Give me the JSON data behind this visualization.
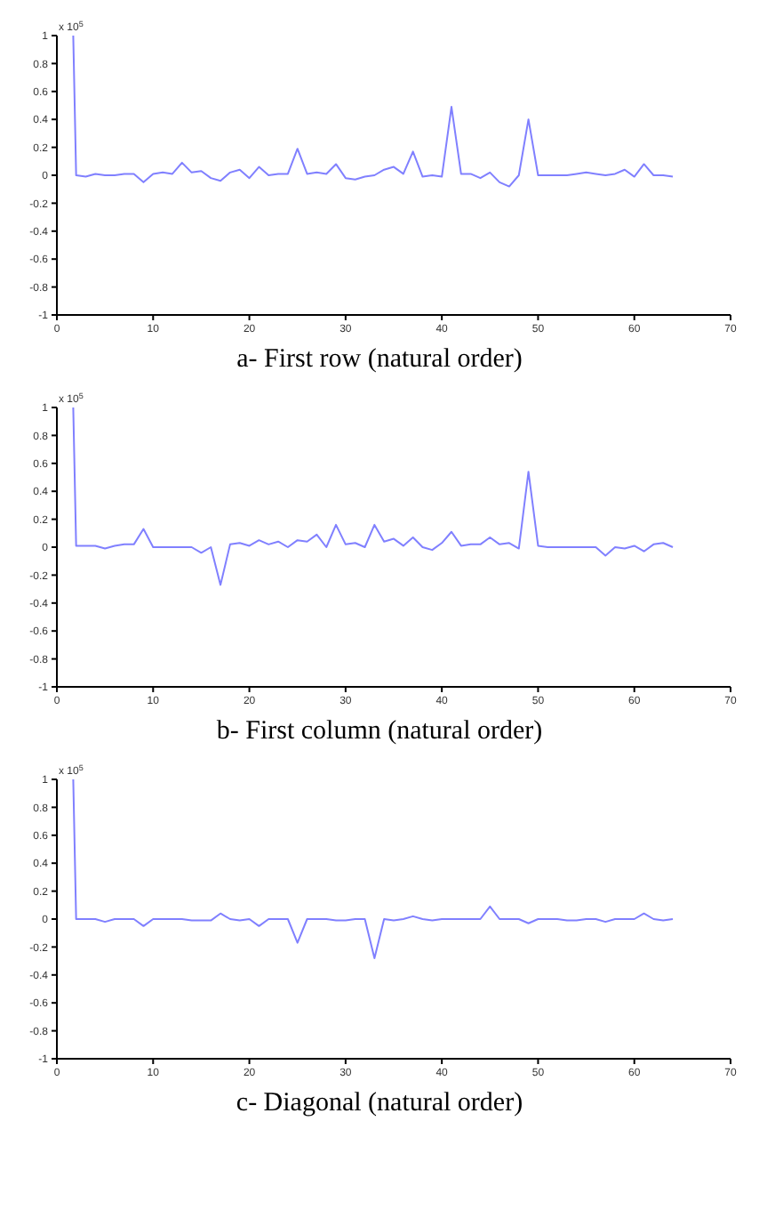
{
  "chart_data": [
    {
      "type": "line",
      "title": "a- First row (natural order)",
      "annotations": [
        "x 10$^{5}$"
      ],
      "xlim": [
        0,
        70
      ],
      "xticks": [
        0,
        10,
        20,
        30,
        40,
        50,
        60,
        70
      ],
      "ylim": [
        -1,
        1
      ],
      "yticks": [
        -1,
        -0.8,
        -0.6,
        -0.4,
        -0.2,
        0,
        0.2,
        0.4,
        0.6,
        0.8,
        1
      ],
      "grid": false,
      "legend": false,
      "series": [
        {
          "color": "#8080ff",
          "x": [
            1.7,
            2,
            3,
            4,
            5,
            6,
            7,
            8,
            9,
            10,
            11,
            12,
            13,
            14,
            15,
            16,
            17,
            18,
            19,
            20,
            21,
            22,
            23,
            24,
            25,
            26,
            27,
            28,
            29,
            30,
            31,
            32,
            33,
            34,
            35,
            36,
            37,
            38,
            39,
            40,
            41,
            42,
            43,
            44,
            45,
            46,
            47,
            48,
            49,
            50,
            51,
            52,
            53,
            54,
            55,
            56,
            57,
            58,
            59,
            60,
            61,
            62,
            63,
            64
          ],
          "values": [
            1,
            0,
            -0.01,
            0.01,
            0,
            0,
            0.01,
            0.01,
            -0.05,
            0.01,
            0.02,
            0.01,
            0.09,
            0.02,
            0.03,
            -0.02,
            -0.04,
            0.02,
            0.04,
            -0.02,
            0.06,
            0,
            0.01,
            0.01,
            0.19,
            0.01,
            0.02,
            0.01,
            0.08,
            -0.02,
            -0.03,
            -0.01,
            0,
            0.04,
            0.06,
            0.01,
            0.17,
            -0.01,
            0,
            -0.01,
            0.49,
            0.01,
            0.01,
            -0.02,
            0.02,
            -0.05,
            -0.08,
            0,
            0.4,
            0,
            0,
            0,
            0,
            0.01,
            0.02,
            0.01,
            0,
            0.01,
            0.04,
            -0.01,
            0.08,
            0,
            0,
            -0.01
          ]
        }
      ]
    },
    {
      "type": "line",
      "title": "b- First column (natural order)",
      "annotations": [
        "x 10$^{5}$"
      ],
      "xlim": [
        0,
        70
      ],
      "xticks": [
        0,
        10,
        20,
        30,
        40,
        50,
        60,
        70
      ],
      "ylim": [
        -1,
        1
      ],
      "yticks": [
        -1,
        -0.8,
        -0.6,
        -0.4,
        -0.2,
        0,
        0.2,
        0.4,
        0.6,
        0.8,
        1
      ],
      "grid": false,
      "legend": false,
      "series": [
        {
          "color": "#8080ff",
          "x": [
            1.7,
            2,
            3,
            4,
            5,
            6,
            7,
            8,
            9,
            10,
            11,
            12,
            13,
            14,
            15,
            16,
            17,
            18,
            19,
            20,
            21,
            22,
            23,
            24,
            25,
            26,
            27,
            28,
            29,
            30,
            31,
            32,
            33,
            34,
            35,
            36,
            37,
            38,
            39,
            40,
            41,
            42,
            43,
            44,
            45,
            46,
            47,
            48,
            49,
            50,
            51,
            52,
            53,
            54,
            55,
            56,
            57,
            58,
            59,
            60,
            61,
            62,
            63,
            64
          ],
          "values": [
            1,
            0.01,
            0.01,
            0.01,
            -0.01,
            0.01,
            0.02,
            0.02,
            0.13,
            0,
            0,
            0,
            0,
            0,
            -0.04,
            0,
            -0.27,
            0.02,
            0.03,
            0.01,
            0.05,
            0.02,
            0.04,
            0,
            0.05,
            0.04,
            0.09,
            0,
            0.16,
            0.02,
            0.03,
            0,
            0.16,
            0.04,
            0.06,
            0.01,
            0.07,
            0,
            -0.02,
            0.03,
            0.11,
            0.01,
            0.02,
            0.02,
            0.07,
            0.02,
            0.03,
            -0.01,
            0.54,
            0.01,
            0,
            0,
            0,
            0,
            0,
            0,
            -0.06,
            0,
            -0.01,
            0.01,
            -0.03,
            0.02,
            0.03,
            0
          ]
        }
      ]
    },
    {
      "type": "line",
      "title": "c- Diagonal (natural order)",
      "annotations": [
        "x 10$^{5}$"
      ],
      "xlim": [
        0,
        70
      ],
      "xticks": [
        0,
        10,
        20,
        30,
        40,
        50,
        60,
        70
      ],
      "ylim": [
        -1,
        1
      ],
      "yticks": [
        -1,
        -0.8,
        -0.6,
        -0.4,
        -0.2,
        0,
        0.2,
        0.4,
        0.6,
        0.8,
        1
      ],
      "grid": false,
      "legend": false,
      "series": [
        {
          "color": "#8080ff",
          "x": [
            1.7,
            2,
            3,
            4,
            5,
            6,
            7,
            8,
            9,
            10,
            11,
            12,
            13,
            14,
            15,
            16,
            17,
            18,
            19,
            20,
            21,
            22,
            23,
            24,
            25,
            26,
            27,
            28,
            29,
            30,
            31,
            32,
            33,
            34,
            35,
            36,
            37,
            38,
            39,
            40,
            41,
            42,
            43,
            44,
            45,
            46,
            47,
            48,
            49,
            50,
            51,
            52,
            53,
            54,
            55,
            56,
            57,
            58,
            59,
            60,
            61,
            62,
            63,
            64
          ],
          "values": [
            1,
            0,
            0,
            0,
            -0.02,
            0,
            0,
            0,
            -0.05,
            0,
            0,
            0,
            0,
            -0.01,
            -0.01,
            -0.01,
            0.04,
            0,
            -0.01,
            0,
            -0.05,
            0,
            0,
            0,
            -0.17,
            0,
            0,
            0,
            -0.01,
            -0.01,
            0,
            0,
            -0.28,
            0,
            -0.01,
            0,
            0.02,
            0,
            -0.01,
            0,
            0,
            0,
            0,
            0,
            0.09,
            0,
            0,
            0,
            -0.03,
            0,
            0,
            0,
            -0.01,
            -0.01,
            0,
            0,
            -0.02,
            0,
            0,
            0,
            0.04,
            0,
            -0.01,
            0
          ]
        }
      ]
    }
  ]
}
